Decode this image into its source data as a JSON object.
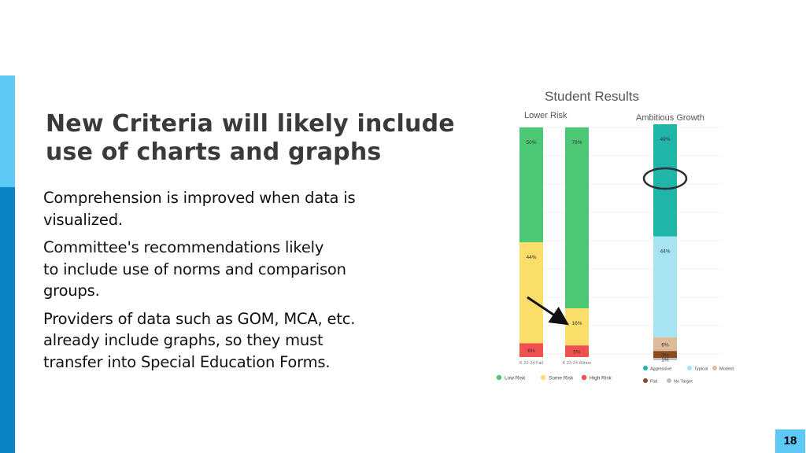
{
  "slide": {
    "title": "New Criteria will likely include\nuse of charts and graphs",
    "bullets": [
      "Comprehension is improved when data is\nvisualized.",
      "Committee's recommendations likely\nto  include use of norms and comparison\ngroups.",
      "Providers of data such as GOM, MCA, etc.\nalready include graphs, so they must\ntransfer into Special Education Forms."
    ],
    "page_number": "18"
  },
  "colors": {
    "accent_light": "#5BC8F5",
    "accent_dark": "#0B84C6",
    "low_risk": "#4CC774",
    "some_risk": "#FBDD69",
    "high_risk": "#F0504F",
    "aggressive": "#1FB5A8",
    "typical": "#A6E4F3",
    "modest": "#DDBB9A",
    "flat": "#8B4A1F",
    "no_target": "#BDBDBD"
  },
  "chart_data": [
    {
      "type": "bar",
      "stacked": true,
      "title": "Student Results",
      "subtitle": "Lower Risk",
      "categories": [
        "K 23-24 Fall",
        "K 23-24 Winter"
      ],
      "series": [
        {
          "name": "Low Risk",
          "values": [
            50,
            78
          ],
          "labels": [
            "50%",
            "78%"
          ]
        },
        {
          "name": "Some Risk",
          "values": [
            44,
            16
          ],
          "labels": [
            "44%",
            "16%"
          ]
        },
        {
          "name": "High Risk",
          "values": [
            6,
            5
          ],
          "labels": [
            "6%",
            "5%"
          ]
        }
      ],
      "legend": "bottom"
    },
    {
      "type": "bar",
      "stacked": true,
      "subtitle": "Ambitious Growth",
      "categories": [
        ""
      ],
      "series": [
        {
          "name": "Aggressive",
          "values": [
            49
          ],
          "labels": [
            "49%"
          ]
        },
        {
          "name": "Typical",
          "values": [
            44
          ],
          "labels": [
            "44%"
          ]
        },
        {
          "name": "Modest",
          "values": [
            6
          ],
          "labels": [
            "6%"
          ]
        },
        {
          "name": "Flat",
          "values": [
            3
          ],
          "labels": [
            "3%"
          ]
        },
        {
          "name": "No Target",
          "values": [
            1
          ],
          "labels": [
            "1%"
          ]
        }
      ],
      "legend": "bottom"
    }
  ]
}
